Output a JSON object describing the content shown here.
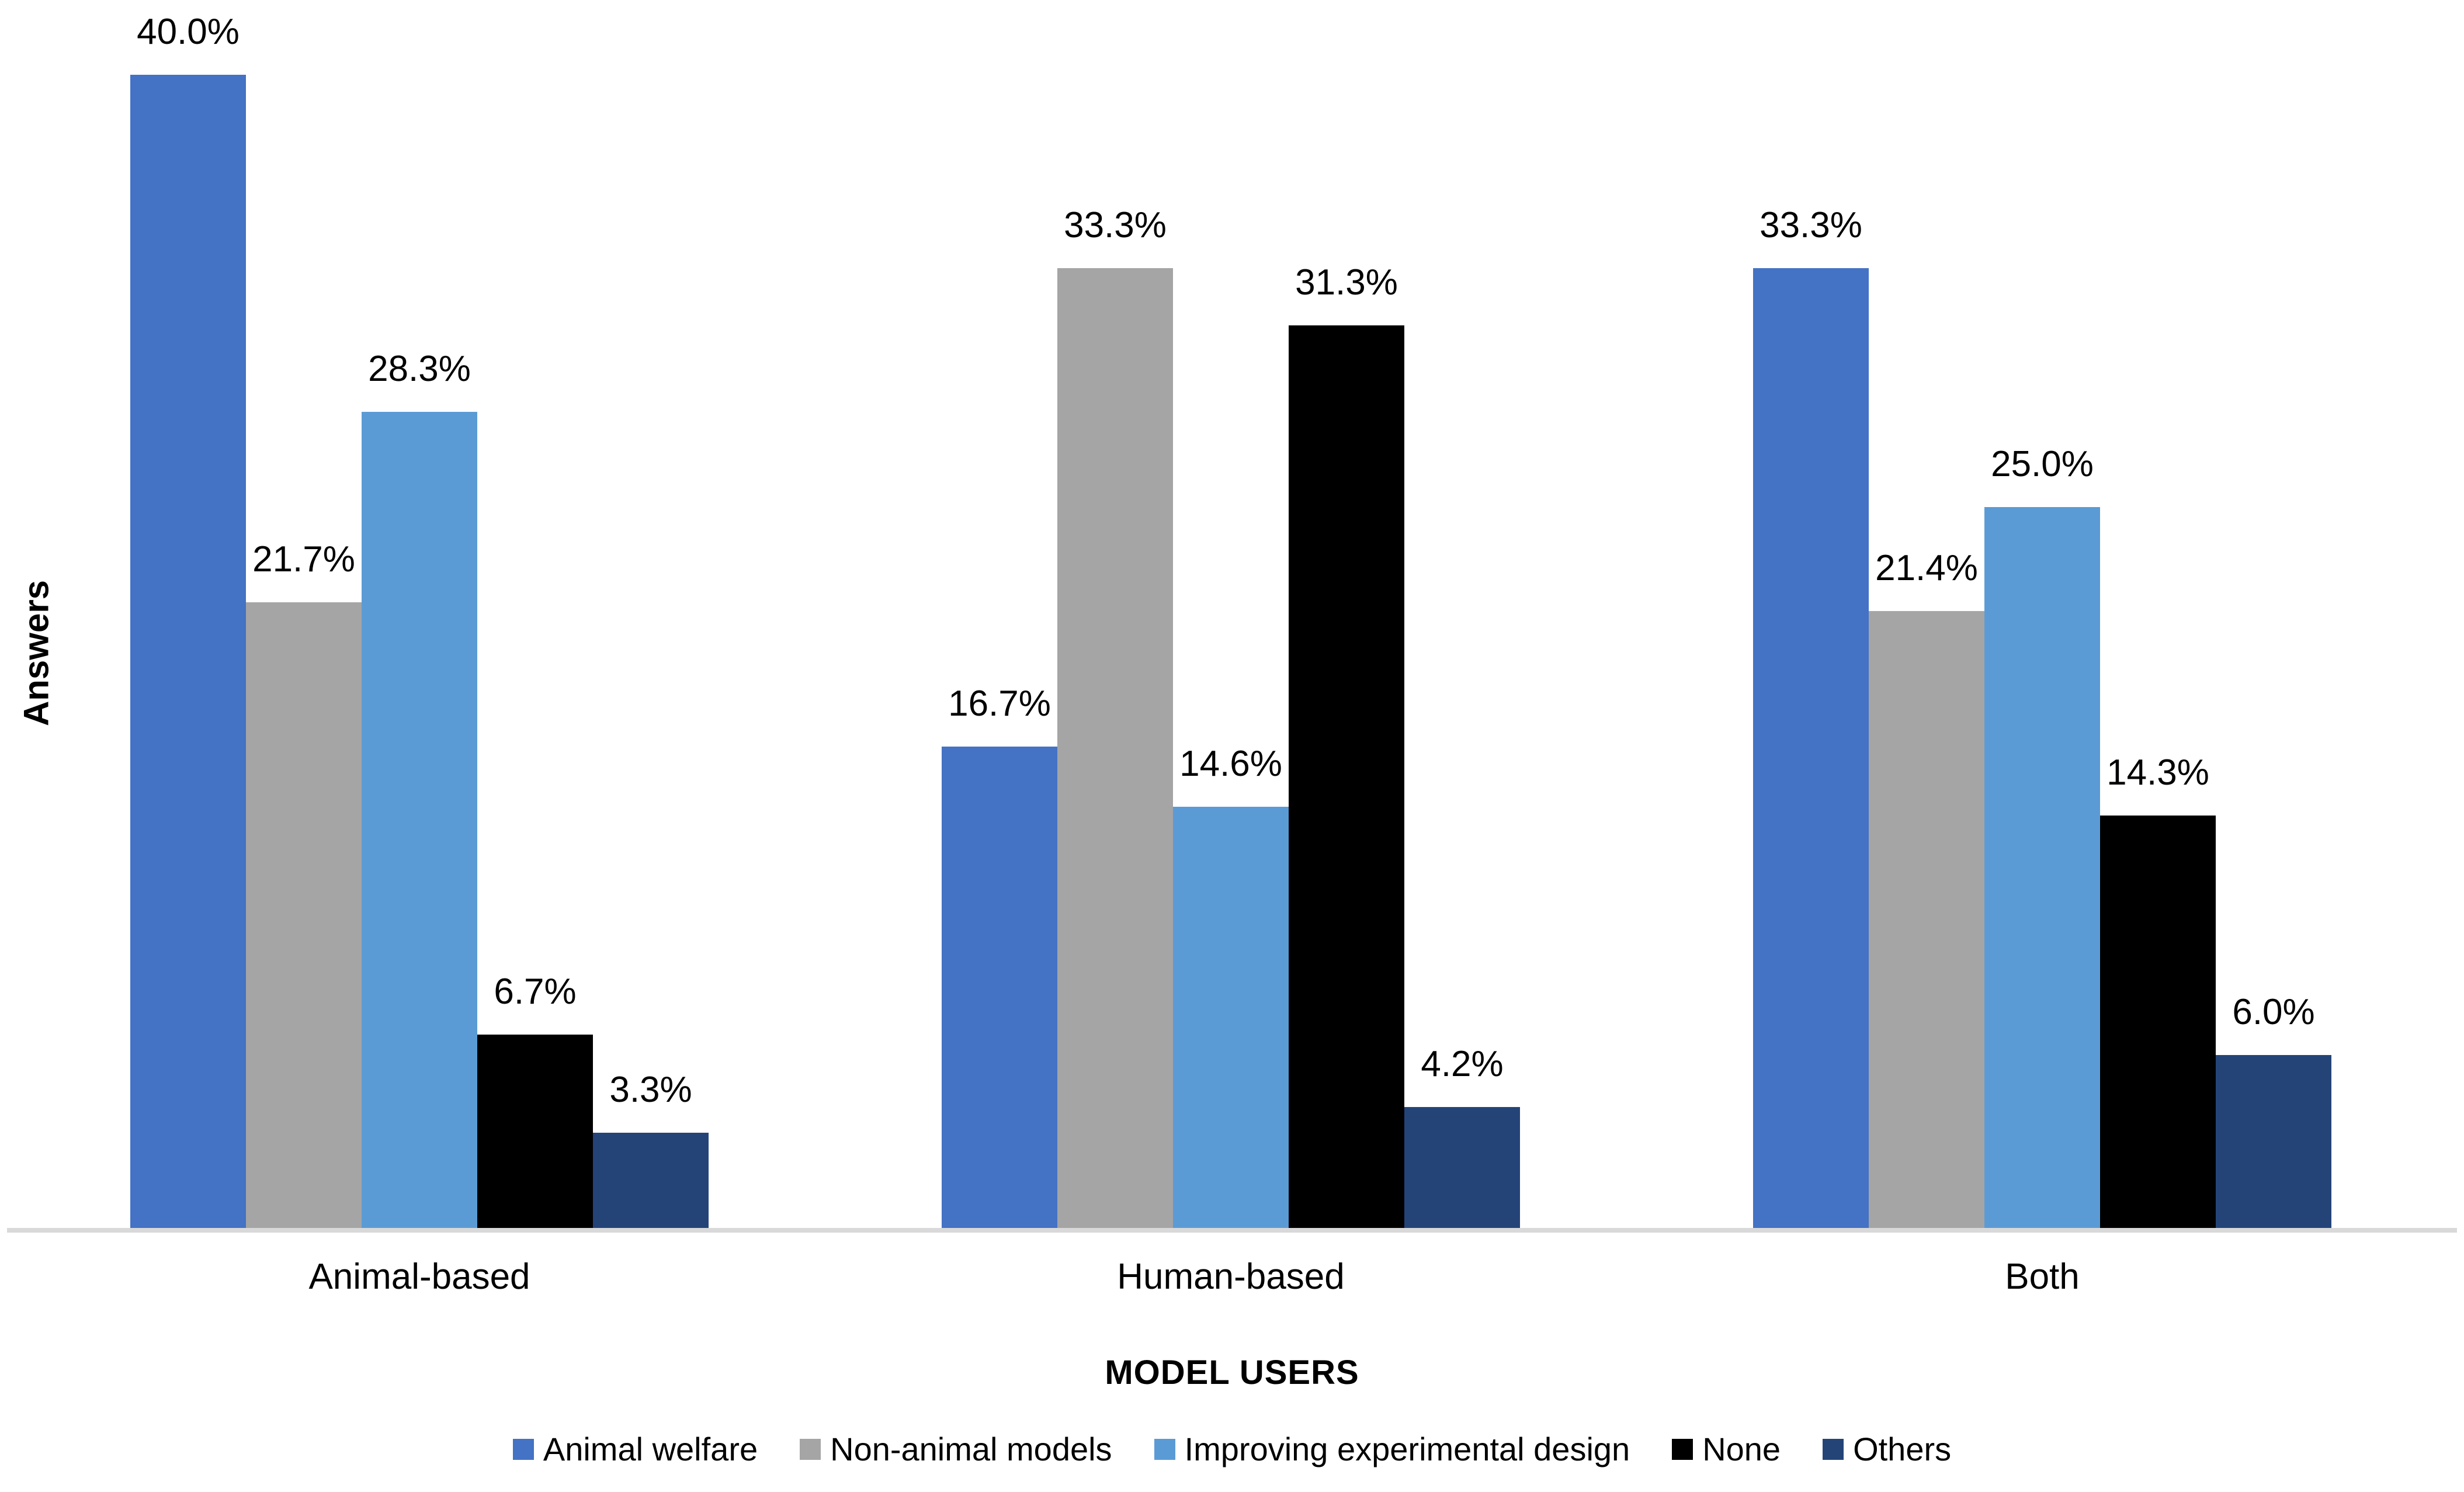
{
  "chart_data": {
    "type": "bar",
    "title": "",
    "categories": [
      "Animal-based",
      "Human-based",
      "Both"
    ],
    "series": [
      {
        "name": "Animal welfare",
        "color": "#4472C4",
        "values": [
          40.0,
          16.7,
          33.3
        ],
        "labels": [
          "40.0%",
          "16.7%",
          "33.3%"
        ]
      },
      {
        "name": "Non-animal models",
        "color": "#A5A5A5",
        "values": [
          21.7,
          33.3,
          21.4
        ],
        "labels": [
          "21.7%",
          "33.3%",
          "21.4%"
        ]
      },
      {
        "name": "Improving experimental design",
        "color": "#5B9BD5",
        "values": [
          28.3,
          14.6,
          25.0
        ],
        "labels": [
          "28.3%",
          "14.6%",
          "25.0%"
        ]
      },
      {
        "name": "None",
        "color": "#000000",
        "values": [
          6.7,
          31.3,
          14.3
        ],
        "labels": [
          "6.7%",
          "31.3%",
          "14.3%"
        ]
      },
      {
        "name": "Others",
        "color": "#244478",
        "values": [
          3.3,
          4.2,
          6.0
        ],
        "labels": [
          "3.3%",
          "4.2%",
          "6.0%"
        ]
      }
    ],
    "xlabel": "MODEL USERS",
    "ylabel": "Answers",
    "ylim": [
      0,
      41.5
    ],
    "grid": false,
    "y_axis_tick_labels_visible": false,
    "data_labels_visible": true,
    "axis_line_color": "#D9D9D9",
    "legend_position": "bottom"
  }
}
